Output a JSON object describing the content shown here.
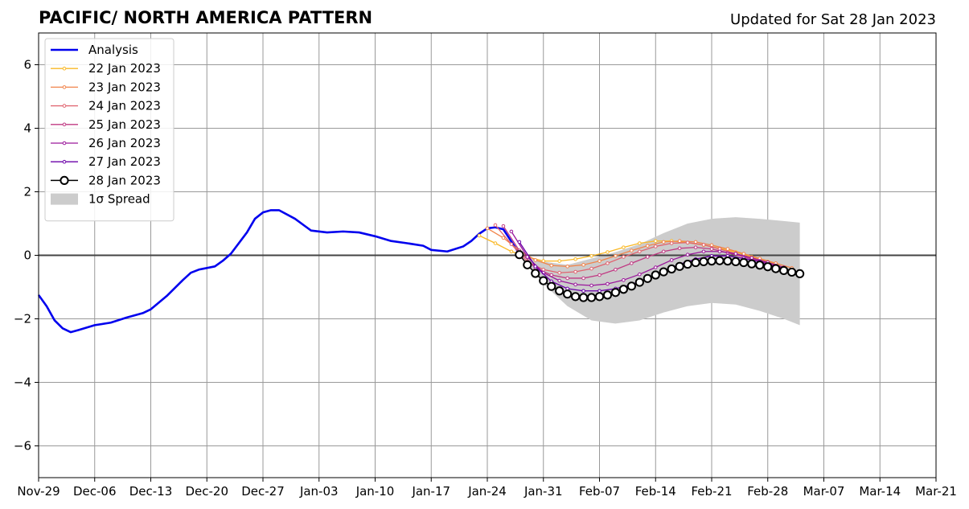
{
  "chart_data": {
    "type": "line",
    "title": "PACIFIC/ NORTH AMERICA PATTERN",
    "subtitle": "Updated for Sat 28 Jan 2023",
    "xlabel": "",
    "ylabel": "",
    "x_range": [
      "2022-11-29",
      "2023-03-21"
    ],
    "ylim": [
      -7,
      7
    ],
    "y_ticks": [
      -6,
      -4,
      -2,
      0,
      2,
      4,
      6
    ],
    "y_tick_labels": [
      "−6",
      "−4",
      "−2",
      "0",
      "2",
      "4",
      "6"
    ],
    "x_ticks": [
      "2022-11-29",
      "2022-12-06",
      "2022-12-13",
      "2022-12-20",
      "2022-12-27",
      "2023-01-03",
      "2023-01-10",
      "2023-01-17",
      "2023-01-24",
      "2023-01-31",
      "2023-02-07",
      "2023-02-14",
      "2023-02-21",
      "2023-02-28",
      "2023-03-07",
      "2023-03-14",
      "2023-03-21"
    ],
    "x_tick_labels": [
      "Nov-29",
      "Dec-06",
      "Dec-13",
      "Dec-20",
      "Dec-27",
      "Jan-03",
      "Jan-10",
      "Jan-17",
      "Jan-24",
      "Jan-31",
      "Feb-07",
      "Feb-14",
      "Feb-21",
      "Feb-28",
      "Mar-07",
      "Mar-14",
      "Mar-21"
    ],
    "grid": true,
    "legend_position": "top-left",
    "spread": {
      "name": "1σ Spread",
      "color": "#cccccc",
      "x": [
        "2023-01-28",
        "2023-01-31",
        "2023-02-03",
        "2023-02-06",
        "2023-02-09",
        "2023-02-12",
        "2023-02-15",
        "2023-02-18",
        "2023-02-21",
        "2023-02-24",
        "2023-02-27",
        "2023-03-02",
        "2023-03-04"
      ],
      "upper": [
        0.0,
        -0.2,
        -0.3,
        -0.1,
        0.1,
        0.35,
        0.7,
        1.0,
        1.15,
        1.2,
        1.15,
        1.08,
        1.03
      ],
      "lower": [
        0.0,
        -0.9,
        -1.6,
        -2.05,
        -2.15,
        -2.05,
        -1.8,
        -1.6,
        -1.5,
        -1.55,
        -1.75,
        -2.0,
        -2.2
      ]
    },
    "series": [
      {
        "name": "Analysis",
        "color": "#0000ee",
        "style": "thick-line",
        "x": [
          "2022-11-29",
          "2022-11-30",
          "2022-12-01",
          "2022-12-02",
          "2022-12-03",
          "2022-12-04",
          "2022-12-06",
          "2022-12-08",
          "2022-12-10",
          "2022-12-12",
          "2022-12-13",
          "2022-12-15",
          "2022-12-17",
          "2022-12-18",
          "2022-12-19",
          "2022-12-21",
          "2022-12-22",
          "2022-12-23",
          "2022-12-25",
          "2022-12-26",
          "2022-12-27",
          "2022-12-28",
          "2022-12-29",
          "2022-12-31",
          "2023-01-02",
          "2023-01-04",
          "2023-01-06",
          "2023-01-08",
          "2023-01-10",
          "2023-01-12",
          "2023-01-14",
          "2023-01-16",
          "2023-01-17",
          "2023-01-19",
          "2023-01-21",
          "2023-01-22",
          "2023-01-23",
          "2023-01-24",
          "2023-01-25",
          "2023-01-26",
          "2023-01-28"
        ],
        "y": [
          -1.25,
          -1.6,
          -2.05,
          -2.3,
          -2.42,
          -2.35,
          -2.2,
          -2.12,
          -1.96,
          -1.82,
          -1.7,
          -1.28,
          -0.78,
          -0.55,
          -0.45,
          -0.35,
          -0.17,
          0.05,
          0.72,
          1.15,
          1.35,
          1.42,
          1.42,
          1.15,
          0.78,
          0.72,
          0.75,
          0.72,
          0.6,
          0.45,
          0.38,
          0.3,
          0.17,
          0.12,
          0.28,
          0.45,
          0.68,
          0.85,
          0.88,
          0.82,
          0.05
        ]
      },
      {
        "name": "22 Jan 2023",
        "color": "#f9b825",
        "x": [
          "2023-01-23",
          "2023-01-25",
          "2023-01-27",
          "2023-01-29",
          "2023-01-31",
          "2023-02-02",
          "2023-02-04",
          "2023-02-06",
          "2023-02-08",
          "2023-02-10",
          "2023-02-12",
          "2023-02-14",
          "2023-02-16",
          "2023-02-18",
          "2023-02-20",
          "2023-02-22",
          "2023-02-24",
          "2023-02-26",
          "2023-02-28",
          "2023-03-02"
        ],
        "y": [
          0.62,
          0.38,
          0.12,
          -0.05,
          -0.18,
          -0.18,
          -0.12,
          -0.02,
          0.1,
          0.25,
          0.38,
          0.45,
          0.45,
          0.4,
          0.32,
          0.22,
          0.1,
          -0.05,
          -0.2,
          -0.38
        ]
      },
      {
        "name": "23 Jan 2023",
        "color": "#f1844b",
        "x": [
          "2023-01-24",
          "2023-01-26",
          "2023-01-28",
          "2023-01-30",
          "2023-02-01",
          "2023-02-03",
          "2023-02-05",
          "2023-02-07",
          "2023-02-09",
          "2023-02-11",
          "2023-02-13",
          "2023-02-15",
          "2023-02-17",
          "2023-02-19",
          "2023-02-21",
          "2023-02-23",
          "2023-02-25",
          "2023-02-27",
          "2023-03-01",
          "2023-03-03"
        ],
        "y": [
          0.85,
          0.55,
          0.15,
          -0.15,
          -0.32,
          -0.35,
          -0.3,
          -0.18,
          -0.02,
          0.15,
          0.3,
          0.42,
          0.45,
          0.42,
          0.32,
          0.2,
          0.05,
          -0.1,
          -0.25,
          -0.4
        ]
      },
      {
        "name": "24 Jan 2023",
        "color": "#e0636f",
        "x": [
          "2023-01-25",
          "2023-01-27",
          "2023-01-29",
          "2023-01-31",
          "2023-02-02",
          "2023-02-04",
          "2023-02-06",
          "2023-02-08",
          "2023-02-10",
          "2023-02-12",
          "2023-02-14",
          "2023-02-16",
          "2023-02-18",
          "2023-02-20",
          "2023-02-22",
          "2023-02-24",
          "2023-02-26",
          "2023-02-28",
          "2023-03-02"
        ],
        "y": [
          0.95,
          0.35,
          -0.2,
          -0.45,
          -0.55,
          -0.52,
          -0.42,
          -0.25,
          -0.05,
          0.12,
          0.28,
          0.38,
          0.4,
          0.33,
          0.2,
          0.05,
          -0.1,
          -0.25,
          -0.4
        ]
      },
      {
        "name": "25 Jan 2023",
        "color": "#c03a83",
        "x": [
          "2023-01-26",
          "2023-01-28",
          "2023-01-30",
          "2023-02-01",
          "2023-02-03",
          "2023-02-05",
          "2023-02-07",
          "2023-02-09",
          "2023-02-11",
          "2023-02-13",
          "2023-02-15",
          "2023-02-17",
          "2023-02-19",
          "2023-02-21",
          "2023-02-23",
          "2023-02-25",
          "2023-02-27",
          "2023-03-01",
          "2023-03-02"
        ],
        "y": [
          0.92,
          0.15,
          -0.4,
          -0.62,
          -0.72,
          -0.72,
          -0.62,
          -0.45,
          -0.25,
          -0.05,
          0.12,
          0.22,
          0.25,
          0.2,
          0.08,
          -0.05,
          -0.18,
          -0.32,
          -0.4
        ]
      },
      {
        "name": "26 Jan 2023",
        "color": "#9a179b",
        "x": [
          "2023-01-27",
          "2023-01-29",
          "2023-01-31",
          "2023-02-02",
          "2023-02-04",
          "2023-02-06",
          "2023-02-08",
          "2023-02-10",
          "2023-02-12",
          "2023-02-14",
          "2023-02-16",
          "2023-02-18",
          "2023-02-20",
          "2023-02-22",
          "2023-02-24",
          "2023-02-26",
          "2023-02-28",
          "2023-03-02"
        ],
        "y": [
          0.75,
          -0.05,
          -0.55,
          -0.8,
          -0.92,
          -0.95,
          -0.9,
          -0.78,
          -0.6,
          -0.38,
          -0.15,
          0.02,
          0.12,
          0.12,
          0.05,
          -0.08,
          -0.22,
          -0.38
        ]
      },
      {
        "name": "27 Jan 2023",
        "color": "#6a00a8",
        "x": [
          "2023-01-28",
          "2023-01-30",
          "2023-02-01",
          "2023-02-03",
          "2023-02-05",
          "2023-02-07",
          "2023-02-09",
          "2023-02-11",
          "2023-02-13",
          "2023-02-15",
          "2023-02-17",
          "2023-02-19",
          "2023-02-21",
          "2023-02-23",
          "2023-02-25",
          "2023-02-27",
          "2023-03-01",
          "2023-03-02"
        ],
        "y": [
          0.42,
          -0.35,
          -0.82,
          -1.05,
          -1.12,
          -1.12,
          -1.05,
          -0.92,
          -0.72,
          -0.5,
          -0.28,
          -0.12,
          -0.02,
          -0.02,
          -0.1,
          -0.2,
          -0.35,
          -0.42
        ]
      },
      {
        "name": "28 Jan 2023",
        "color": "#000000",
        "style": "circles",
        "x": [
          "2023-01-28",
          "2023-01-29",
          "2023-01-30",
          "2023-01-31",
          "2023-02-01",
          "2023-02-02",
          "2023-02-03",
          "2023-02-04",
          "2023-02-05",
          "2023-02-06",
          "2023-02-07",
          "2023-02-08",
          "2023-02-09",
          "2023-02-10",
          "2023-02-11",
          "2023-02-12",
          "2023-02-13",
          "2023-02-14",
          "2023-02-15",
          "2023-02-16",
          "2023-02-17",
          "2023-02-18",
          "2023-02-19",
          "2023-02-20",
          "2023-02-21",
          "2023-02-22",
          "2023-02-23",
          "2023-02-24",
          "2023-02-25",
          "2023-02-26",
          "2023-02-27",
          "2023-02-28",
          "2023-03-01",
          "2023-03-02",
          "2023-03-03",
          "2023-03-04"
        ],
        "y": [
          0.02,
          -0.3,
          -0.57,
          -0.8,
          -0.98,
          -1.12,
          -1.22,
          -1.3,
          -1.33,
          -1.33,
          -1.3,
          -1.25,
          -1.17,
          -1.07,
          -0.97,
          -0.85,
          -0.73,
          -0.62,
          -0.52,
          -0.43,
          -0.35,
          -0.28,
          -0.23,
          -0.2,
          -0.18,
          -0.17,
          -0.18,
          -0.2,
          -0.23,
          -0.27,
          -0.31,
          -0.36,
          -0.42,
          -0.48,
          -0.53,
          -0.58
        ]
      }
    ]
  }
}
